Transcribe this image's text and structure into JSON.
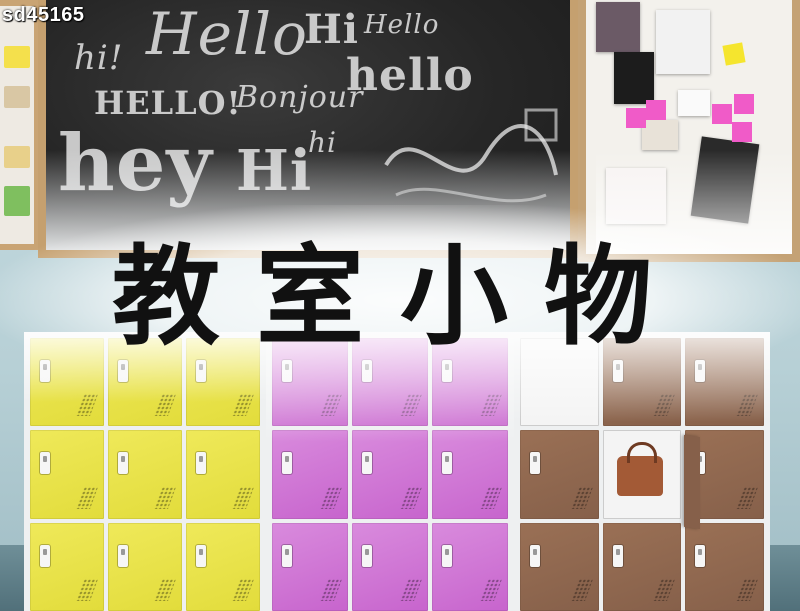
{
  "watermark": {
    "text": "sd45165"
  },
  "title": {
    "text": "教室小物"
  },
  "chalkboard": {
    "words": [
      "hi!",
      "Hello",
      "Hi",
      "Hello",
      "HELLO!",
      "Bonjour",
      "hello",
      "hey",
      "Hi",
      "hi"
    ]
  },
  "colors": {
    "yellow_lockers": "#e7e147",
    "purple_lockers": "#cf74d4",
    "brown_lockers": "#8d654e",
    "sticky_notes_pink": "#f05bc8",
    "sticky_notes_yellow": "#f5e52e"
  },
  "icons": [
    "locker-handle-icon",
    "vent-holes-icon",
    "handbag-icon"
  ]
}
